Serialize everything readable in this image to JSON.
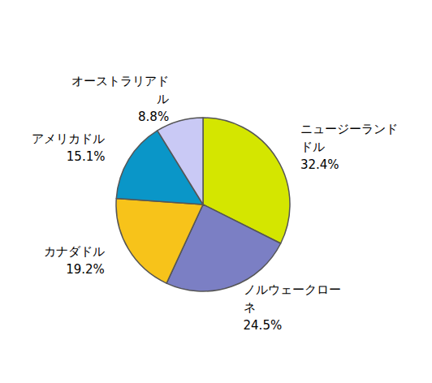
{
  "chart_data": {
    "type": "pie",
    "categories": [
      "ニュージーランドドル",
      "ノルウェークローネ",
      "カナダドル",
      "アメリカドル",
      "オーストラリアドル"
    ],
    "values": [
      32.4,
      24.5,
      19.2,
      15.1,
      8.8
    ],
    "value_labels": [
      "32.4%",
      "24.5%",
      "19.2%",
      "15.1%",
      "8.8%"
    ],
    "colors": [
      "#d4e600",
      "#7b7fc4",
      "#f7c31a",
      "#0a96c8",
      "#c9c9f5"
    ],
    "data_labels": true
  }
}
